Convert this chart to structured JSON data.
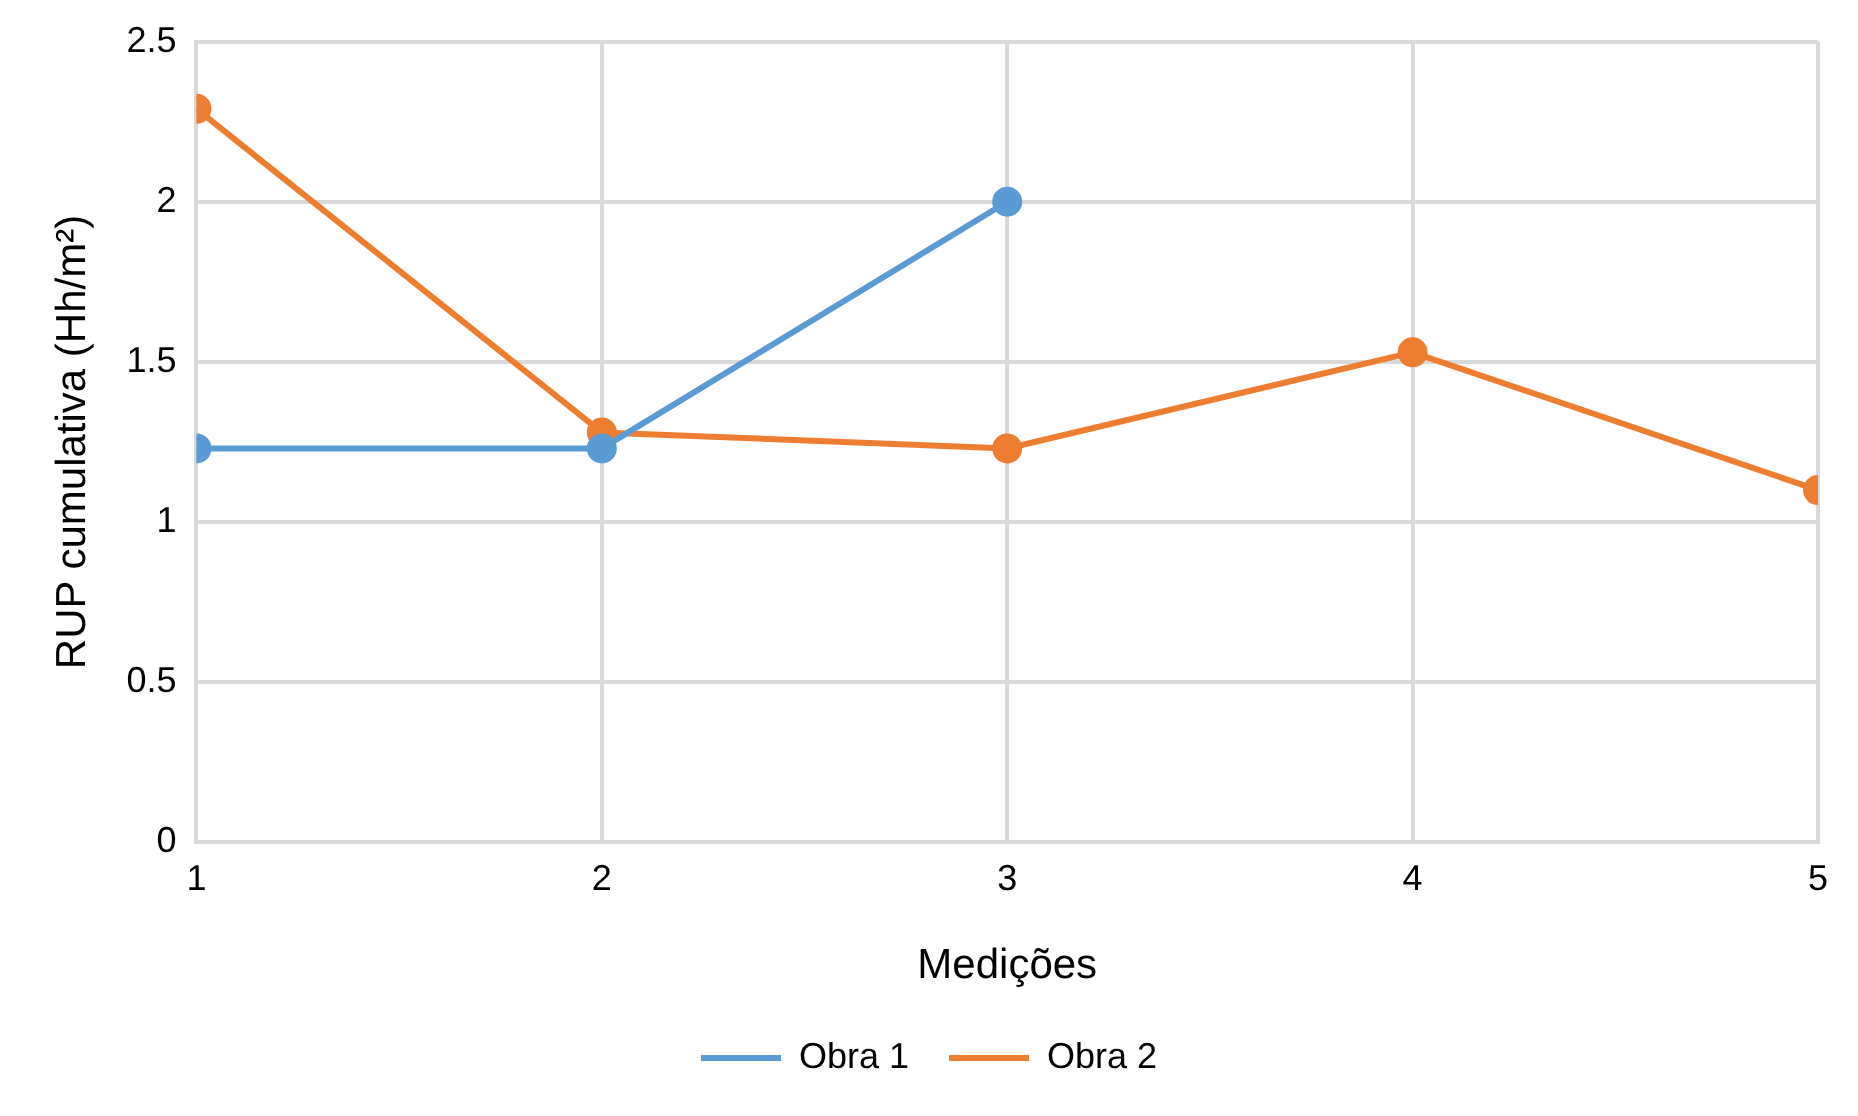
{
  "chart_data": {
    "type": "line",
    "xlabel": "Medições",
    "ylabel": "RUP cumulativa (Hh/m²)",
    "x": [
      1,
      2,
      3,
      4,
      5
    ],
    "series": [
      {
        "name": "Obra 1",
        "color": "#5b9bd5",
        "values": [
          1.23,
          1.23,
          2.0,
          null,
          null
        ]
      },
      {
        "name": "Obra 2",
        "color": "#ed7d31",
        "values": [
          2.29,
          1.28,
          1.23,
          1.53,
          1.1
        ]
      }
    ],
    "xlim": [
      1,
      5
    ],
    "xticks": [
      1,
      2,
      3,
      4,
      5
    ],
    "ylim": [
      0,
      2.5
    ],
    "yticks": [
      0,
      0.5,
      1,
      1.5,
      2,
      2.5
    ],
    "grid": true,
    "legend": "bottom",
    "marker": "circle",
    "line_style": "solid"
  }
}
